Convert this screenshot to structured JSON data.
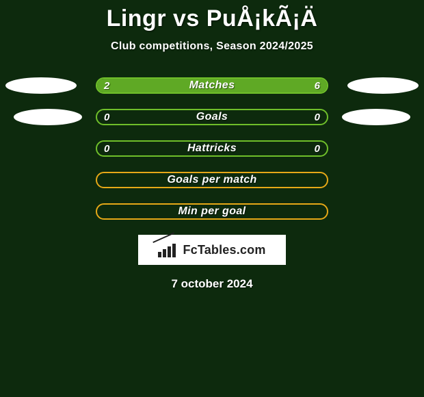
{
  "header": {
    "title": "Lingr vs PuÅ¡kÃ¡Ä",
    "subtitle": "Club competitions, Season 2024/2025"
  },
  "colors": {
    "background": "#0d2a0d",
    "green": "#6fbf2a",
    "orange": "#e6a817",
    "white": "#ffffff"
  },
  "rows": [
    {
      "key": "matches",
      "label": "Matches",
      "left": "2",
      "right": "6",
      "style": "green",
      "fill_left_pct": 22,
      "fill_right_pct": 78,
      "show_ellipse": true,
      "ellipse_variant": 1
    },
    {
      "key": "goals",
      "label": "Goals",
      "left": "0",
      "right": "0",
      "style": "green",
      "fill_left_pct": 0,
      "fill_right_pct": 0,
      "show_ellipse": true,
      "ellipse_variant": 2
    },
    {
      "key": "hattricks",
      "label": "Hattricks",
      "left": "0",
      "right": "0",
      "style": "green",
      "fill_left_pct": 0,
      "fill_right_pct": 0,
      "show_ellipse": false
    },
    {
      "key": "gpm",
      "label": "Goals per match",
      "left": "",
      "right": "",
      "style": "orange",
      "fill_left_pct": 0,
      "fill_right_pct": 0,
      "show_ellipse": false
    },
    {
      "key": "mpg",
      "label": "Min per goal",
      "left": "",
      "right": "",
      "style": "orange",
      "fill_left_pct": 0,
      "fill_right_pct": 0,
      "show_ellipse": false
    }
  ],
  "footer": {
    "logo_text": "FcTables.com",
    "date": "7 october 2024"
  }
}
